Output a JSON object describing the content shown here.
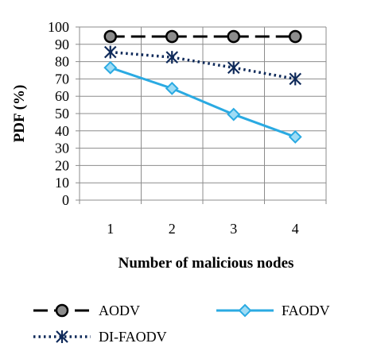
{
  "chart_data": {
    "type": "line",
    "categories": [
      "1",
      "2",
      "3",
      "4"
    ],
    "xlabel": "Number of malicious nodes",
    "ylabel": "PDF (%)",
    "ylim": [
      0,
      100
    ],
    "yticks": [
      0,
      10,
      20,
      30,
      40,
      50,
      60,
      70,
      80,
      90,
      100
    ],
    "grid": true,
    "legend_position": "bottom",
    "series": [
      {
        "name": "AODV",
        "values": [
          94.5,
          94.5,
          94.5,
          94.5
        ],
        "color": "#000000",
        "marker": "circle",
        "line_style": "long-dash"
      },
      {
        "name": "FAODV",
        "values": [
          76.5,
          64.5,
          49.5,
          36.5
        ],
        "color": "#2aaae2",
        "marker": "diamond",
        "line_style": "solid"
      },
      {
        "name": "DI-FAODV",
        "values": [
          85.5,
          82.5,
          76.5,
          70
        ],
        "color": "#0f2a5a",
        "marker": "asterisk",
        "line_style": "dotted"
      }
    ]
  }
}
